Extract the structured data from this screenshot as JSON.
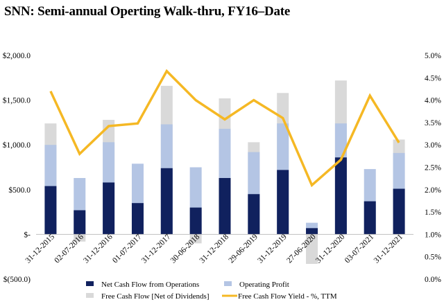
{
  "chart_data": {
    "type": "bar",
    "title": "SNN: Semi-annual Operting Walk-thru, FY16–Date",
    "categories": [
      "31-12-2015",
      "02-07-2016",
      "31-12-2016",
      "01-07-2017",
      "31-12-2017",
      "30-06-2018",
      "31-12-2018",
      "29-06-2019",
      "31-12-2019",
      "27-06-2020",
      "31-12-2020",
      "03-07-2021",
      "31-12-2021"
    ],
    "series": [
      {
        "name": "Net Cash Flow from Operations",
        "kind": "bar",
        "axis": "left",
        "color": "#10215e",
        "values": [
          540,
          270,
          580,
          350,
          740,
          300,
          630,
          450,
          720,
          70,
          860,
          370,
          510
        ]
      },
      {
        "name": "Operating Profit",
        "kind": "bar",
        "axis": "left",
        "color": "#b4c5e4",
        "values": [
          1000,
          630,
          1030,
          790,
          1230,
          750,
          1180,
          920,
          1240,
          130,
          1240,
          730,
          910
        ]
      },
      {
        "name": "Free Cash Flow [Net of Dividends]",
        "kind": "bar",
        "axis": "left",
        "color": "#d9d9d9",
        "values": [
          1240,
          -80,
          1280,
          770,
          1660,
          -100,
          1520,
          1030,
          1580,
          -330,
          1720,
          0,
          1060
        ]
      },
      {
        "name": "Free Cash Flow Yield - %, TTM",
        "kind": "line",
        "axis": "right",
        "color": "#f5b824",
        "values": [
          4.2,
          2.8,
          3.42,
          3.48,
          4.65,
          4.0,
          3.57,
          4.0,
          3.6,
          2.1,
          2.67,
          4.1,
          3.05
        ]
      }
    ],
    "ylim": [
      -500,
      2000
    ],
    "yticks": [
      "$(500.0)",
      "$-",
      "$500.0",
      "$1,000.0",
      "$1,500.0",
      "$2,000.0"
    ],
    "ytick_values": [
      -500,
      0,
      500,
      1000,
      1500,
      2000
    ],
    "y2lim": [
      0,
      5
    ],
    "y2ticks": [
      "0.0%",
      "0.5%",
      "1.0%",
      "1.5%",
      "2.0%",
      "2.5%",
      "3.0%",
      "3.5%",
      "4.0%",
      "4.5%",
      "5.0%"
    ],
    "y2tick_values": [
      0,
      0.5,
      1,
      1.5,
      2,
      2.5,
      3,
      3.5,
      4,
      4.5,
      5
    ],
    "xlabel": "",
    "ylabel": "",
    "grid": false,
    "legend": "bottom"
  }
}
